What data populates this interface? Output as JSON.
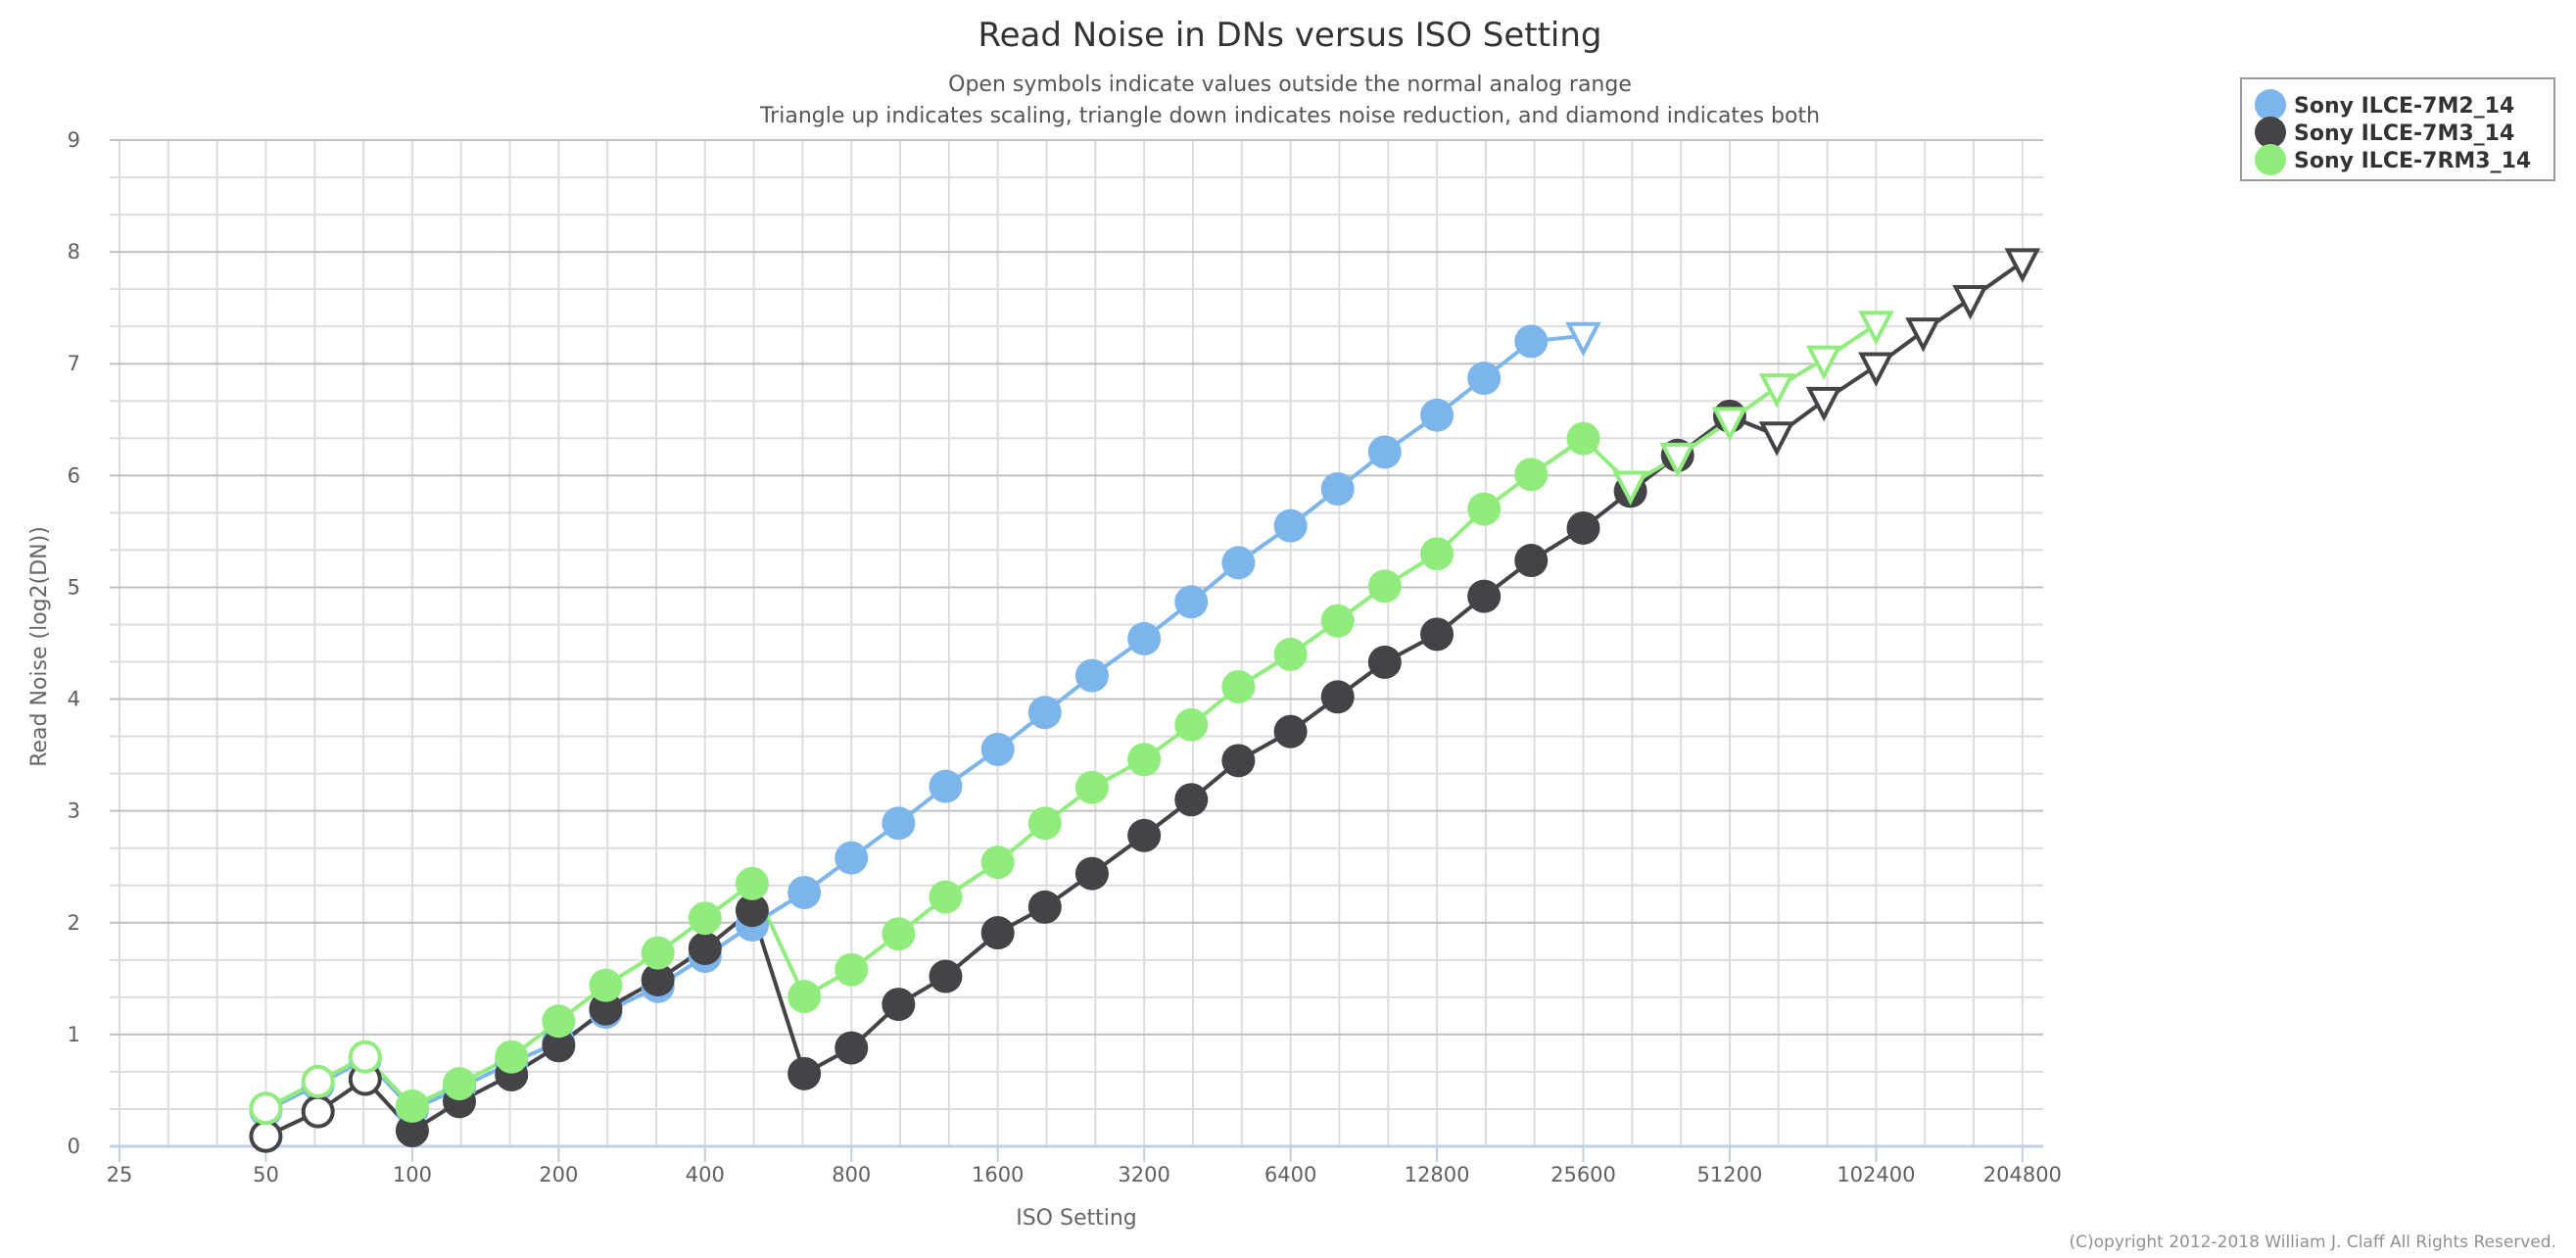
{
  "chart_data": {
    "type": "line",
    "title": "Read Noise in DNs versus ISO Setting",
    "subtitle": [
      "Open symbols indicate values outside the normal analog range",
      "Triangle up indicates scaling, triangle down indicates noise reduction, and diamond indicates both"
    ],
    "xlabel": "ISO Setting",
    "ylabel": "Read Noise (log2(DN))",
    "x_scale": "log2",
    "xlim": [
      25,
      204800
    ],
    "ylim": [
      0,
      9
    ],
    "x_ticks": [
      "25",
      "50",
      "100",
      "200",
      "400",
      "800",
      "1600",
      "3200",
      "6400",
      "12800",
      "25600",
      "51200",
      "102400",
      "204800"
    ],
    "y_ticks": [
      "0",
      "1",
      "2",
      "3",
      "4",
      "5",
      "6",
      "7",
      "8",
      "9"
    ],
    "grid": true,
    "legend_position": "top-right",
    "copyright": "(C)opyright 2012-2018 William J. Claff All Rights Reserved.",
    "series": [
      {
        "name": "Sony ILCE-7M2_14",
        "color": "#7cb5ec",
        "points": [
          {
            "x": 50,
            "y": 0.32,
            "symbol": "open-circle"
          },
          {
            "x": 64,
            "y": 0.55,
            "symbol": "open-circle"
          },
          {
            "x": 80,
            "y": 0.78,
            "symbol": "open-circle"
          },
          {
            "x": 100,
            "y": 0.33,
            "symbol": "circle"
          },
          {
            "x": 125,
            "y": 0.52,
            "symbol": "circle"
          },
          {
            "x": 160,
            "y": 0.75,
            "symbol": "circle"
          },
          {
            "x": 200,
            "y": 0.93,
            "symbol": "circle"
          },
          {
            "x": 250,
            "y": 1.2,
            "symbol": "circle"
          },
          {
            "x": 320,
            "y": 1.43,
            "symbol": "circle"
          },
          {
            "x": 400,
            "y": 1.7,
            "symbol": "circle"
          },
          {
            "x": 500,
            "y": 1.98,
            "symbol": "circle"
          },
          {
            "x": 640,
            "y": 2.27,
            "symbol": "circle"
          },
          {
            "x": 800,
            "y": 2.58,
            "symbol": "circle"
          },
          {
            "x": 1000,
            "y": 2.89,
            "symbol": "circle"
          },
          {
            "x": 1250,
            "y": 3.22,
            "symbol": "circle"
          },
          {
            "x": 1600,
            "y": 3.55,
            "symbol": "circle"
          },
          {
            "x": 2000,
            "y": 3.88,
            "symbol": "circle"
          },
          {
            "x": 2500,
            "y": 4.21,
            "symbol": "circle"
          },
          {
            "x": 3200,
            "y": 4.54,
            "symbol": "circle"
          },
          {
            "x": 4000,
            "y": 4.87,
            "symbol": "circle"
          },
          {
            "x": 5000,
            "y": 5.22,
            "symbol": "circle"
          },
          {
            "x": 6400,
            "y": 5.55,
            "symbol": "circle"
          },
          {
            "x": 8000,
            "y": 5.88,
            "symbol": "circle"
          },
          {
            "x": 10000,
            "y": 6.21,
            "symbol": "circle"
          },
          {
            "x": 12800,
            "y": 6.54,
            "symbol": "circle"
          },
          {
            "x": 16000,
            "y": 6.87,
            "symbol": "circle"
          },
          {
            "x": 20000,
            "y": 7.2,
            "symbol": "circle"
          },
          {
            "x": 25600,
            "y": 7.25,
            "symbol": "open-triangle-down"
          }
        ]
      },
      {
        "name": "Sony ILCE-7M3_14",
        "color": "#434348",
        "points": [
          {
            "x": 50,
            "y": 0.09,
            "symbol": "open-circle"
          },
          {
            "x": 64,
            "y": 0.31,
            "symbol": "open-circle"
          },
          {
            "x": 80,
            "y": 0.6,
            "symbol": "open-circle"
          },
          {
            "x": 100,
            "y": 0.14,
            "symbol": "circle"
          },
          {
            "x": 125,
            "y": 0.4,
            "symbol": "circle"
          },
          {
            "x": 160,
            "y": 0.64,
            "symbol": "circle"
          },
          {
            "x": 200,
            "y": 0.9,
            "symbol": "circle"
          },
          {
            "x": 250,
            "y": 1.23,
            "symbol": "circle"
          },
          {
            "x": 320,
            "y": 1.49,
            "symbol": "circle"
          },
          {
            "x": 400,
            "y": 1.77,
            "symbol": "circle"
          },
          {
            "x": 500,
            "y": 2.11,
            "symbol": "circle"
          },
          {
            "x": 640,
            "y": 0.65,
            "symbol": "circle"
          },
          {
            "x": 800,
            "y": 0.88,
            "symbol": "circle"
          },
          {
            "x": 1000,
            "y": 1.27,
            "symbol": "circle"
          },
          {
            "x": 1250,
            "y": 1.52,
            "symbol": "circle"
          },
          {
            "x": 1600,
            "y": 1.91,
            "symbol": "circle"
          },
          {
            "x": 2000,
            "y": 2.14,
            "symbol": "circle"
          },
          {
            "x": 2500,
            "y": 2.44,
            "symbol": "circle"
          },
          {
            "x": 3200,
            "y": 2.78,
            "symbol": "circle"
          },
          {
            "x": 4000,
            "y": 3.1,
            "symbol": "circle"
          },
          {
            "x": 5000,
            "y": 3.45,
            "symbol": "circle"
          },
          {
            "x": 6400,
            "y": 3.71,
            "symbol": "circle"
          },
          {
            "x": 8000,
            "y": 4.02,
            "symbol": "circle"
          },
          {
            "x": 10000,
            "y": 4.33,
            "symbol": "circle"
          },
          {
            "x": 12800,
            "y": 4.58,
            "symbol": "circle"
          },
          {
            "x": 16000,
            "y": 4.92,
            "symbol": "circle"
          },
          {
            "x": 20000,
            "y": 5.24,
            "symbol": "circle"
          },
          {
            "x": 25600,
            "y": 5.53,
            "symbol": "circle"
          },
          {
            "x": 32000,
            "y": 5.86,
            "symbol": "circle"
          },
          {
            "x": 40000,
            "y": 6.18,
            "symbol": "circle"
          },
          {
            "x": 51200,
            "y": 6.53,
            "symbol": "circle"
          },
          {
            "x": 64000,
            "y": 6.36,
            "symbol": "open-triangle-down"
          },
          {
            "x": 80000,
            "y": 6.67,
            "symbol": "open-triangle-down"
          },
          {
            "x": 102400,
            "y": 6.98,
            "symbol": "open-triangle-down"
          },
          {
            "x": 128000,
            "y": 7.29,
            "symbol": "open-triangle-down"
          },
          {
            "x": 160000,
            "y": 7.58,
            "symbol": "open-triangle-down"
          },
          {
            "x": 204800,
            "y": 7.91,
            "symbol": "open-triangle-down"
          }
        ]
      },
      {
        "name": "Sony ILCE-7RM3_14",
        "color": "#90ed7d",
        "points": [
          {
            "x": 50,
            "y": 0.34,
            "symbol": "open-circle"
          },
          {
            "x": 64,
            "y": 0.58,
            "symbol": "open-circle"
          },
          {
            "x": 80,
            "y": 0.8,
            "symbol": "open-circle"
          },
          {
            "x": 100,
            "y": 0.36,
            "symbol": "circle"
          },
          {
            "x": 125,
            "y": 0.56,
            "symbol": "circle"
          },
          {
            "x": 160,
            "y": 0.8,
            "symbol": "circle"
          },
          {
            "x": 200,
            "y": 1.12,
            "symbol": "circle"
          },
          {
            "x": 250,
            "y": 1.44,
            "symbol": "circle"
          },
          {
            "x": 320,
            "y": 1.73,
            "symbol": "circle"
          },
          {
            "x": 400,
            "y": 2.04,
            "symbol": "circle"
          },
          {
            "x": 500,
            "y": 2.35,
            "symbol": "circle"
          },
          {
            "x": 640,
            "y": 1.34,
            "symbol": "circle"
          },
          {
            "x": 800,
            "y": 1.58,
            "symbol": "circle"
          },
          {
            "x": 1000,
            "y": 1.9,
            "symbol": "circle"
          },
          {
            "x": 1250,
            "y": 2.23,
            "symbol": "circle"
          },
          {
            "x": 1600,
            "y": 2.54,
            "symbol": "circle"
          },
          {
            "x": 2000,
            "y": 2.89,
            "symbol": "circle"
          },
          {
            "x": 2500,
            "y": 3.21,
            "symbol": "circle"
          },
          {
            "x": 3200,
            "y": 3.46,
            "symbol": "circle"
          },
          {
            "x": 4000,
            "y": 3.77,
            "symbol": "circle"
          },
          {
            "x": 5000,
            "y": 4.11,
            "symbol": "circle"
          },
          {
            "x": 6400,
            "y": 4.4,
            "symbol": "circle"
          },
          {
            "x": 8000,
            "y": 4.7,
            "symbol": "circle"
          },
          {
            "x": 10000,
            "y": 5.01,
            "symbol": "circle"
          },
          {
            "x": 12800,
            "y": 5.3,
            "symbol": "circle"
          },
          {
            "x": 16000,
            "y": 5.7,
            "symbol": "circle"
          },
          {
            "x": 20000,
            "y": 6.01,
            "symbol": "circle"
          },
          {
            "x": 25600,
            "y": 6.33,
            "symbol": "circle"
          },
          {
            "x": 32000,
            "y": 5.92,
            "symbol": "open-triangle-down"
          },
          {
            "x": 40000,
            "y": 6.17,
            "symbol": "open-triangle-down"
          },
          {
            "x": 51200,
            "y": 6.49,
            "symbol": "open-triangle-down"
          },
          {
            "x": 64000,
            "y": 6.79,
            "symbol": "open-triangle-down"
          },
          {
            "x": 80000,
            "y": 7.04,
            "symbol": "open-triangle-down"
          },
          {
            "x": 102400,
            "y": 7.35,
            "symbol": "open-triangle-down"
          }
        ]
      }
    ]
  }
}
